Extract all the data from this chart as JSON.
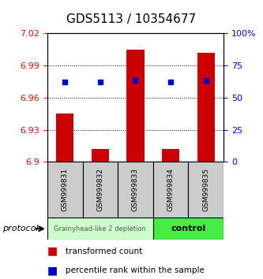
{
  "title": "GDS5113 / 10354677",
  "samples": [
    "GSM999831",
    "GSM999832",
    "GSM999833",
    "GSM999834",
    "GSM999835"
  ],
  "red_bar_tops": [
    6.945,
    6.912,
    7.005,
    6.912,
    7.002
  ],
  "red_bar_bottom": 6.9,
  "blue_dot_values": [
    6.975,
    6.975,
    6.976,
    6.975,
    6.976
  ],
  "ylim": [
    6.9,
    7.02
  ],
  "y_ticks_left": [
    6.9,
    6.93,
    6.96,
    6.99,
    7.02
  ],
  "y_ticks_right": [
    0,
    25,
    50,
    75,
    100
  ],
  "ytick_labels_left": [
    "6.9",
    "6.93",
    "6.96",
    "6.99",
    "7.02"
  ],
  "ytick_labels_right": [
    "0",
    "25",
    "50",
    "75",
    "100%"
  ],
  "group1_label": "Grainyhead-like 2 depletion",
  "group2_label": "control",
  "protocol_label": "protocol",
  "legend1_label": "transformed count",
  "legend2_label": "percentile rank within the sample",
  "bar_color": "#cc0000",
  "dot_color": "#0000cc",
  "group1_bg": "#ccffcc",
  "group2_bg": "#44ee44",
  "sample_bg": "#cccccc",
  "title_fontsize": 11,
  "bar_width": 0.5
}
